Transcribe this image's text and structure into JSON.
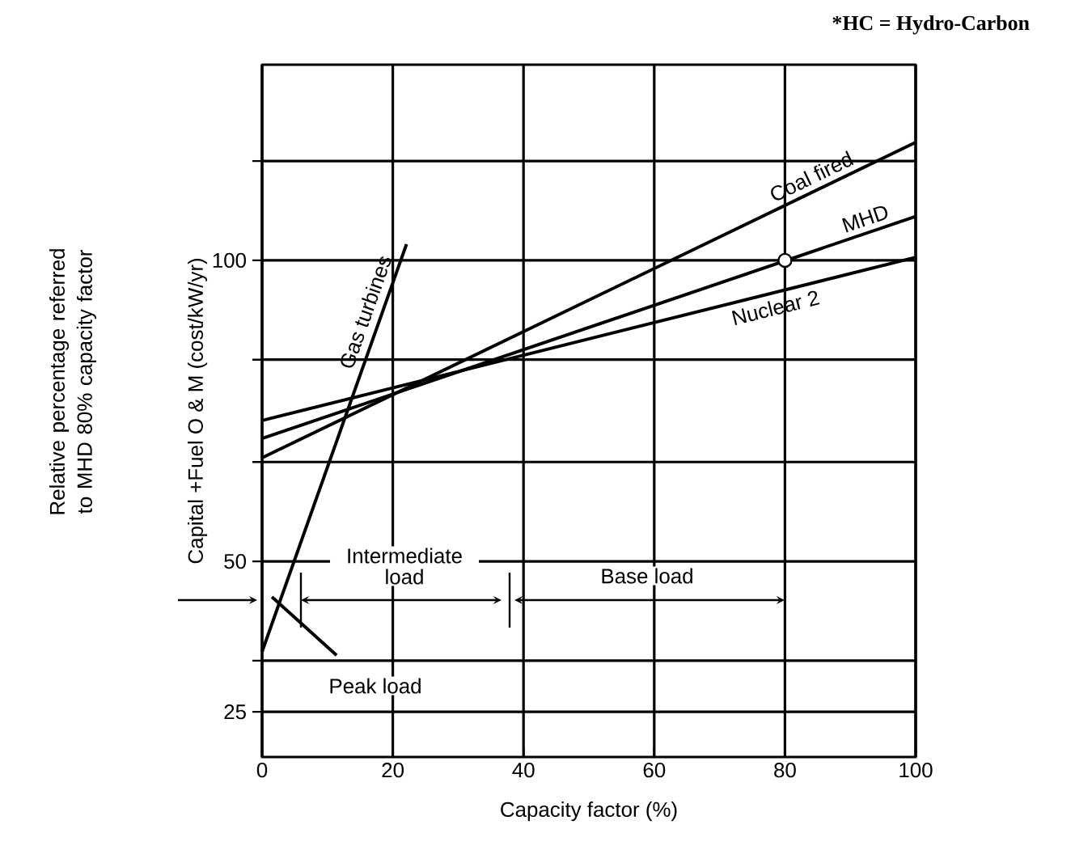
{
  "chart_data": {
    "type": "line",
    "xlabel": "Capacity factor (%)",
    "ylabel": "Capital +Fuel O & M (cost/kW/yr)",
    "annotations": [
      "*HC = Hydro-Carbon",
      "Relative percentage referred to MHD 80% capacity factor",
      "Intermediate load",
      "Base load",
      "Peak load"
    ],
    "xlim": [
      0,
      100
    ],
    "xticks": [
      0,
      20,
      40,
      60,
      80,
      100
    ],
    "ylim": [
      17.5,
      132.5
    ],
    "yticks": [
      25,
      {
        "value": 33.5,
        "label": null
      },
      50,
      {
        "value": 66.5,
        "label": null
      },
      {
        "value": 83.5,
        "label": null
      },
      100,
      {
        "value": 116.5,
        "label": null
      }
    ],
    "grid": true,
    "marker": "none",
    "line_style": "solid",
    "series": [
      {
        "name": "Gas turbines",
        "color": "#000000",
        "x": [
          0,
          22.1
        ],
        "values": [
          35.0,
          102.7
        ]
      },
      {
        "name": "Coal fired",
        "color": "#000000",
        "x": [
          0,
          100
        ],
        "values": [
          67.2,
          119.6
        ]
      },
      {
        "name": "MHD",
        "color": "#000000",
        "x": [
          0,
          100
        ],
        "values": [
          70.4,
          107.3
        ]
      },
      {
        "name": "Nuclear 2",
        "color": "#000000",
        "x": [
          0,
          100
        ],
        "values": [
          73.4,
          100.5
        ]
      },
      {
        "color": "#000000",
        "x": [
          1.5,
          11.4
        ],
        "values": [
          44.1,
          34.4
        ]
      },
      {
        "type": "scatter",
        "marker": "circle",
        "color": "#000000",
        "x": [
          80
        ],
        "values": [
          100
        ]
      }
    ]
  }
}
